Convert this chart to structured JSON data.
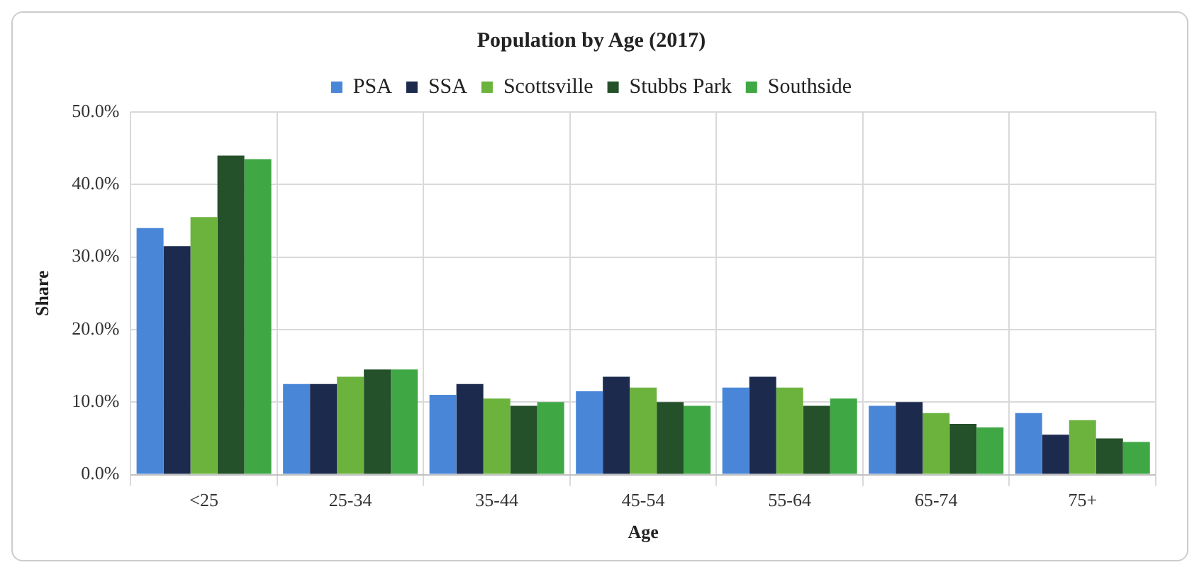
{
  "chart_data": {
    "type": "bar",
    "title": "Population by Age (2017)",
    "xlabel": "Age",
    "ylabel": "Share",
    "categories": [
      "<25",
      "25-34",
      "35-44",
      "45-54",
      "55-64",
      "65-74",
      "75+"
    ],
    "series": [
      {
        "name": "PSA",
        "color": "#4a86d8",
        "values": [
          34,
          12.5,
          11,
          11.5,
          12,
          9.5,
          8.5
        ]
      },
      {
        "name": "SSA",
        "color": "#1c2a4e",
        "values": [
          31.5,
          12.5,
          12.5,
          13.5,
          13.5,
          10,
          5.5
        ]
      },
      {
        "name": "Scottsville",
        "color": "#6cb33e",
        "values": [
          35.5,
          13.5,
          10.5,
          12,
          12,
          8.5,
          7.5
        ]
      },
      {
        "name": "Stubbs Park",
        "color": "#24502a",
        "values": [
          44,
          14.5,
          9.5,
          10,
          9.5,
          7,
          5
        ]
      },
      {
        "name": "Southside",
        "color": "#3fa844",
        "values": [
          43.5,
          14.5,
          10,
          9.5,
          10.5,
          6.5,
          4.5
        ]
      }
    ],
    "ylim": [
      0,
      50
    ],
    "yticks": [
      {
        "value": 0,
        "label": "0.0%"
      },
      {
        "value": 10,
        "label": "10.0%"
      },
      {
        "value": 20,
        "label": "20.0%"
      },
      {
        "value": 30,
        "label": "30.0%"
      },
      {
        "value": 40,
        "label": "40.0%"
      },
      {
        "value": 50,
        "label": "50.0%"
      }
    ],
    "grid": true,
    "legend": "top"
  }
}
